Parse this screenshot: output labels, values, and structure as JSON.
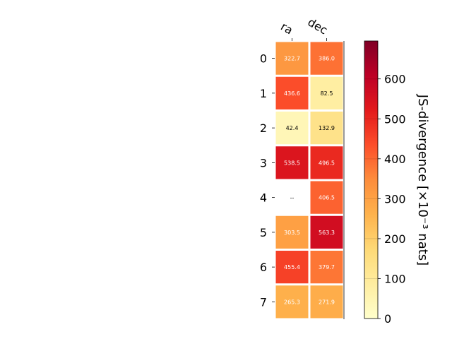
{
  "chart_data": {
    "type": "heatmap",
    "columns": [
      "ra",
      "dec"
    ],
    "rows": [
      "0",
      "1",
      "2",
      "3",
      "4",
      "5",
      "6",
      "7"
    ],
    "values": [
      [
        322.7,
        386.0
      ],
      [
        436.6,
        82.5
      ],
      [
        42.4,
        132.9
      ],
      [
        538.5,
        496.5
      ],
      [
        null,
        406.5
      ],
      [
        303.5,
        563.3
      ],
      [
        455.4,
        379.7
      ],
      [
        265.3,
        271.9
      ]
    ],
    "cell_labels": [
      [
        "322.7",
        "386.0"
      ],
      [
        "436.6",
        "82.5"
      ],
      [
        "42.4",
        "132.9"
      ],
      [
        "538.5",
        "496.5"
      ],
      [
        "--",
        "406.5"
      ],
      [
        "303.5",
        "563.3"
      ],
      [
        "455.4",
        "379.7"
      ],
      [
        "265.3",
        "271.9"
      ]
    ],
    "colorbar": {
      "label": "JS-divergence [×10⁻³ nats]",
      "range": [
        0,
        695
      ],
      "ticks": [
        0,
        100,
        200,
        300,
        400,
        500,
        600
      ],
      "colormap": "YlOrRd",
      "colors": [
        "#ffffcc",
        "#ffeda0",
        "#fed976",
        "#feb24c",
        "#fd8d3c",
        "#fc4e2a",
        "#e31a1c",
        "#bd0026",
        "#800026"
      ]
    }
  }
}
